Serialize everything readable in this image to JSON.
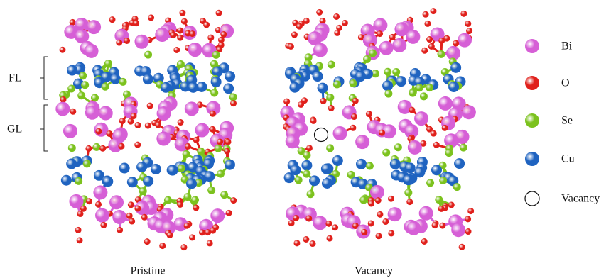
{
  "side_labels": {
    "fl": "FL",
    "gl": "GL"
  },
  "panels": [
    {
      "caption": "Pristine"
    },
    {
      "caption": "Vacancy"
    }
  ],
  "legend": [
    {
      "label": "Bi",
      "color": "#d65fd6"
    },
    {
      "label": "O",
      "color": "#e0201b"
    },
    {
      "label": "Se",
      "color": "#7cc21e"
    },
    {
      "label": "Cu",
      "color": "#1f63c0"
    },
    {
      "label": "Vacancy",
      "color": "#ffffff"
    }
  ]
}
